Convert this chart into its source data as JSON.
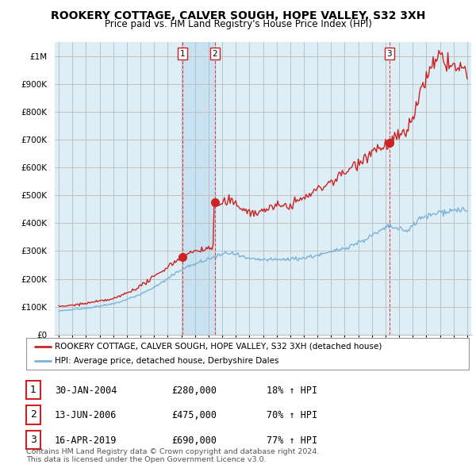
{
  "title": "ROOKERY COTTAGE, CALVER SOUGH, HOPE VALLEY, S32 3XH",
  "subtitle": "Price paid vs. HM Land Registry's House Price Index (HPI)",
  "hpi_color": "#7ab3d4",
  "price_color": "#cc2222",
  "background_color": "#ffffff",
  "chart_bg_color": "#ddeef7",
  "grid_color": "#bbbbbb",
  "legend_label_red": "ROOKERY COTTAGE, CALVER SOUGH, HOPE VALLEY, S32 3XH (detached house)",
  "legend_label_blue": "HPI: Average price, detached house, Derbyshire Dales",
  "transactions": [
    {
      "label": "1",
      "date_num": 2004.08,
      "price": 280000
    },
    {
      "label": "2",
      "date_num": 2006.45,
      "price": 475000
    },
    {
      "label": "3",
      "date_num": 2019.29,
      "price": 690000
    }
  ],
  "table_rows": [
    [
      "1",
      "30-JAN-2004",
      "£280,000",
      "18% ↑ HPI"
    ],
    [
      "2",
      "13-JUN-2006",
      "£475,000",
      "70% ↑ HPI"
    ],
    [
      "3",
      "16-APR-2019",
      "£690,000",
      "77% ↑ HPI"
    ]
  ],
  "footnote": "Contains HM Land Registry data © Crown copyright and database right 2024.\nThis data is licensed under the Open Government Licence v3.0.",
  "ylim": [
    0,
    1050000
  ],
  "xlim": [
    1994.7,
    2025.3
  ],
  "band_x1": 2004.08,
  "band_x2": 2006.45
}
